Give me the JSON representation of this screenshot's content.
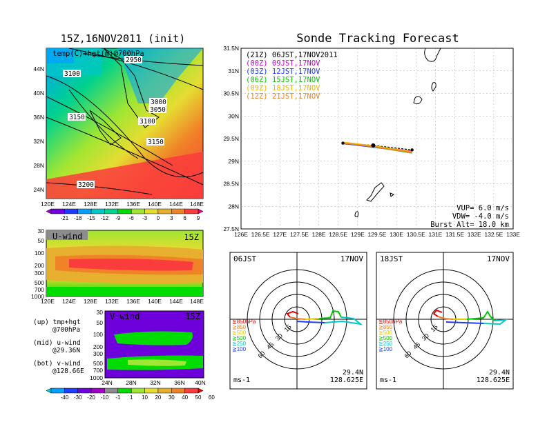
{
  "left_panel": {
    "title": "15Z,16NOV2011 (init)",
    "map_label": "temp(C)+hgt(m)@700hPa",
    "lat_ticks": [
      "44N",
      "40N",
      "36N",
      "32N",
      "28N",
      "24N"
    ],
    "lon_ticks": [
      "120E",
      "124E",
      "128E",
      "132E",
      "136E",
      "140E",
      "144E",
      "148E"
    ],
    "contour_labels": [
      "2950",
      "3100",
      "3000",
      "3050",
      "3150",
      "3100",
      "3150",
      "3200"
    ],
    "temp_colorbar": [
      "-21",
      "-18",
      "-15",
      "-12",
      "-9",
      "-6",
      "-3",
      "0",
      "3",
      "6",
      "9"
    ],
    "temp_colors": [
      "#a000c8",
      "#6e00dc",
      "#1e3cff",
      "#00a0ff",
      "#00c8c8",
      "#00d28c",
      "#00dc00",
      "#a0e632",
      "#e6dc32",
      "#e6af2d",
      "#f08228",
      "#fa3c3c",
      "#e60080"
    ],
    "uwind": {
      "label": "U-wind",
      "time": "15Z",
      "pressure_ticks": [
        "30",
        "50",
        "100",
        "200",
        "300",
        "500",
        "700",
        "1000"
      ],
      "lon_ticks": [
        "120E",
        "124E",
        "128E",
        "132E",
        "136E",
        "140E",
        "144E",
        "148E"
      ]
    },
    "vwind": {
      "label": "V-wind",
      "time": "15Z",
      "pressure_ticks": [
        "30",
        "50",
        "100",
        "200",
        "300",
        "500",
        "700",
        "1000"
      ],
      "lat_ticks": [
        "24N",
        "28N",
        "32N",
        "36N",
        "40N"
      ]
    },
    "legend_notes": [
      {
        "line1": "(up) tmp+hgt",
        "line2": "@700hPa"
      },
      {
        "line1": "(mid) u-wind",
        "line2": "@29.36N"
      },
      {
        "line1": "(bot) v-wind",
        "line2": "@128.66E"
      }
    ],
    "wind_colorbar": [
      "-40",
      "-30",
      "-20",
      "-10",
      "-1",
      "1",
      "10",
      "20",
      "30",
      "40",
      "50",
      "60"
    ],
    "wind_colors": [
      "#00c8c8",
      "#00a0ff",
      "#1e3cff",
      "#6e00dc",
      "#a000c8",
      "#8c8c8c",
      "#00dc00",
      "#a0e632",
      "#e6dc32",
      "#e6af2d",
      "#f08228",
      "#fa3c3c",
      "#e60000"
    ]
  },
  "main_panel": {
    "title": "Sonde Tracking Forecast",
    "lat_ticks": [
      "31.5N",
      "31N",
      "30.5N",
      "30N",
      "29.5N",
      "29N",
      "28.5N",
      "28N",
      "27.5N"
    ],
    "lon_ticks": [
      "126E",
      "126.5E",
      "127E",
      "127.5E",
      "128E",
      "128.5E",
      "129E",
      "129.5E",
      "130E",
      "130.5E",
      "131E",
      "131.5E",
      "132E",
      "132.5E",
      "133E"
    ],
    "legend": [
      {
        "text": "(21Z) 06JST,17NOV2011",
        "color": "#000000"
      },
      {
        "text": "(00Z) 09JST,17NOV",
        "color": "#c800c8"
      },
      {
        "text": "(03Z) 12JST,17NOV",
        "color": "#1e3cff"
      },
      {
        "text": "(06Z) 15JST,17NOV",
        "color": "#00c800"
      },
      {
        "text": "(09Z) 18JST,17NOV",
        "color": "#f0b400"
      },
      {
        "text": "(12Z) 21JST,17NOV",
        "color": "#f08228"
      }
    ],
    "params": [
      "VUP= 6.0 m/s",
      "VDW= -4.0 m/s",
      "Burst Alt= 18.0 km"
    ]
  },
  "hodographs": [
    {
      "time": "06JST",
      "date": "17NOV",
      "lat": "29.4N",
      "lon": "128.625E",
      "unit": "ms-1"
    },
    {
      "time": "18JST",
      "date": "17NOV",
      "lat": "29.4N",
      "lon": "128.625E",
      "unit": "ms-1"
    }
  ],
  "hodo_rings": [
    "15",
    "30",
    "45",
    "60"
  ],
  "hodo_legend": [
    {
      "text": "≧850hPa",
      "color": "#e60000"
    },
    {
      "text": "≧850",
      "color": "#f08228"
    },
    {
      "text": "≧500",
      "color": "#e6c800"
    },
    {
      "text": "≧500",
      "color": "#00c800"
    },
    {
      "text": "≧250",
      "color": "#00c8c8"
    },
    {
      "text": "≧100",
      "color": "#1e3cff"
    }
  ],
  "chart_data": {
    "type": "line",
    "title": "Sonde Tracking Forecast",
    "xlim": [
      126,
      133
    ],
    "ylim": [
      27.5,
      31.5
    ],
    "grid": true,
    "series": [
      {
        "name": "(21Z) 06JST,17NOV2011",
        "color": "#000000",
        "x": [
          128.62,
          129.4,
          130.4
        ],
        "y": [
          29.4,
          29.35,
          29.25
        ]
      },
      {
        "name": "(00Z) 09JST,17NOV",
        "color": "#c800c8",
        "x": [
          128.62,
          129.4,
          130.4
        ],
        "y": [
          29.4,
          29.33,
          29.22
        ]
      },
      {
        "name": "(03Z) 12JST,17NOV",
        "color": "#1e3cff",
        "x": [
          128.62,
          129.4,
          130.4
        ],
        "y": [
          29.39,
          29.31,
          29.2
        ]
      },
      {
        "name": "(06Z) 15JST,17NOV",
        "color": "#00c800",
        "x": [
          128.62,
          129.4,
          130.4
        ],
        "y": [
          29.41,
          29.32,
          29.18
        ]
      },
      {
        "name": "(09Z) 18JST,17NOV",
        "color": "#f0b400",
        "x": [
          128.62,
          129.4,
          130.4
        ],
        "y": [
          29.42,
          29.34,
          29.21
        ]
      },
      {
        "name": "(12Z) 21JST,17NOV",
        "color": "#f08228",
        "x": [
          128.62,
          129.4,
          130.4
        ],
        "y": [
          29.4,
          29.32,
          29.19
        ]
      }
    ]
  }
}
